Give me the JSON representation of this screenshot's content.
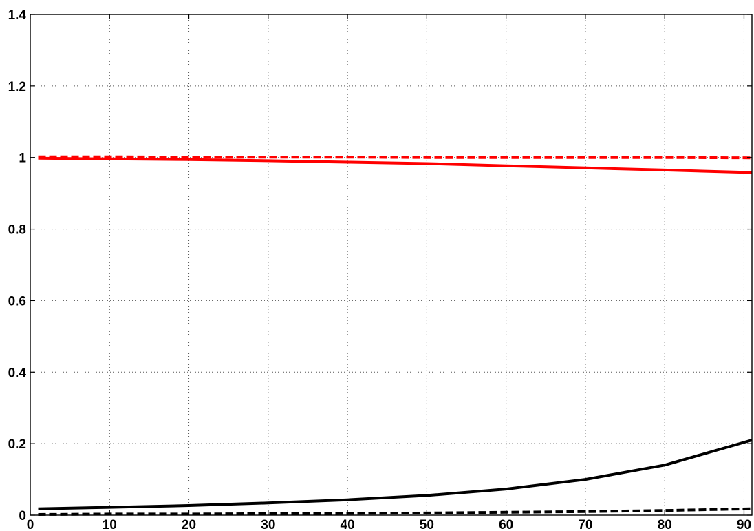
{
  "chart_data": {
    "type": "line",
    "title": "",
    "xlabel": "",
    "ylabel": "",
    "xlim": [
      0,
      91
    ],
    "ylim": [
      0,
      1.4
    ],
    "grid": true,
    "x_ticks": [
      0,
      10,
      20,
      30,
      40,
      50,
      60,
      70,
      80,
      90
    ],
    "y_ticks": [
      0,
      0.2,
      0.4,
      0.6,
      0.8,
      1,
      1.2,
      1.4
    ],
    "x_tick_labels": [
      "0",
      "10",
      "20",
      "30",
      "40",
      "50",
      "60",
      "70",
      "80",
      "90"
    ],
    "y_tick_labels": [
      "0",
      "0.2",
      "0.4",
      "0.6",
      "0.8",
      "1",
      "1.2",
      "1.4"
    ],
    "x": [
      1,
      10,
      20,
      30,
      40,
      50,
      60,
      70,
      80,
      91
    ],
    "series": [
      {
        "color": "#ff0000",
        "style": "dashed",
        "values": [
          1.002,
          1.002,
          1.001,
          1.001,
          1.001,
          1.0,
          1.0,
          1.0,
          1.0,
          0.999
        ]
      },
      {
        "color": "#ff0000",
        "style": "solid",
        "values": [
          0.998,
          0.996,
          0.994,
          0.991,
          0.987,
          0.983,
          0.977,
          0.971,
          0.965,
          0.958
        ]
      },
      {
        "color": "#000000",
        "style": "solid",
        "values": [
          0.018,
          0.022,
          0.027,
          0.034,
          0.043,
          0.055,
          0.073,
          0.1,
          0.14,
          0.21
        ]
      },
      {
        "color": "#000000",
        "style": "dashed",
        "values": [
          0.002,
          0.003,
          0.003,
          0.004,
          0.005,
          0.006,
          0.008,
          0.01,
          0.013,
          0.018
        ]
      }
    ]
  }
}
